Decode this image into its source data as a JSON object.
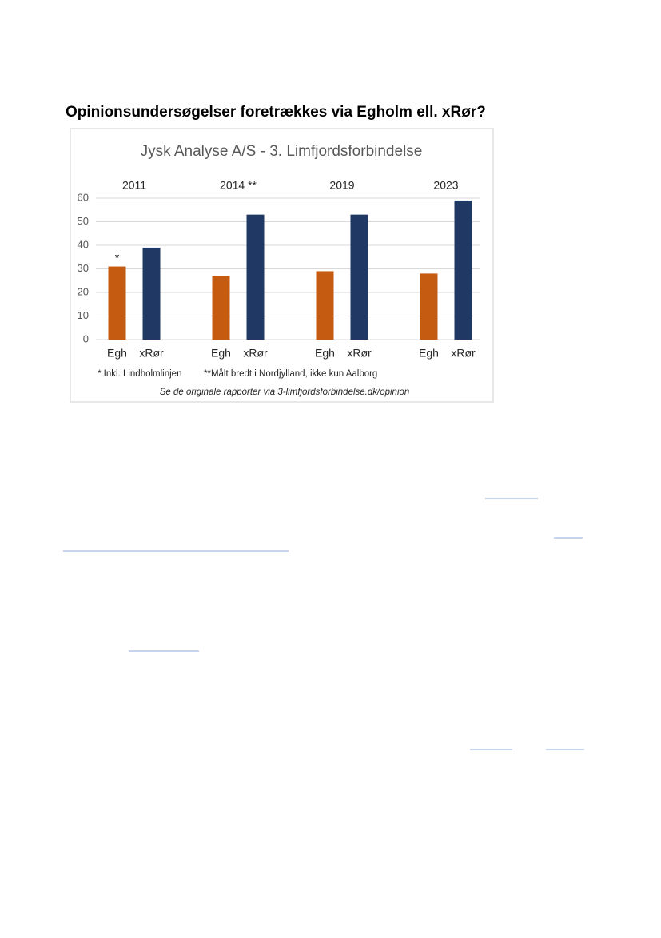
{
  "heading": "Opinionsundersøgelser foretrækkes via Egholm ell. xRør?",
  "chart_data": {
    "type": "bar",
    "title": "Jysk Analyse A/S - 3. Limfjordsforbindelse",
    "categories": [
      "2011",
      "2014 **",
      "2019",
      "2023"
    ],
    "series": [
      {
        "name": "Egh",
        "color": "#c55a11",
        "values": [
          31,
          27,
          29,
          28
        ]
      },
      {
        "name": "xRør",
        "color": "#203864",
        "values": [
          39,
          53,
          53,
          59
        ]
      }
    ],
    "bar_annotation": "*",
    "ylim": [
      0,
      60
    ],
    "yticks": [
      0,
      10,
      20,
      30,
      40,
      50,
      60
    ],
    "grid": true,
    "notes": [
      "* Inkl. Lindholmlinjen",
      "**Målt bredt i Nordjylland, ikke kun Aalborg"
    ],
    "source": "Se de originale rapporter via 3-limfjordsforbindelse.dk/opinion"
  }
}
